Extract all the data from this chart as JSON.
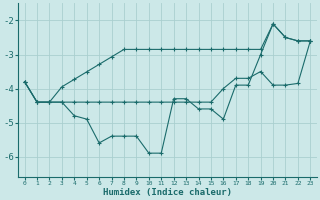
{
  "xlabel": "Humidex (Indice chaleur)",
  "background_color": "#cce8e8",
  "grid_color": "#aacfcf",
  "line_color": "#1a6b6b",
  "x": [
    0,
    1,
    2,
    3,
    4,
    5,
    6,
    7,
    8,
    9,
    10,
    11,
    12,
    13,
    14,
    15,
    16,
    17,
    18,
    19,
    20,
    21,
    22,
    23
  ],
  "y_main": [
    -3.8,
    -4.4,
    -4.4,
    -4.4,
    -4.8,
    -4.9,
    -5.6,
    -5.4,
    -5.4,
    -5.4,
    -5.9,
    -5.9,
    -4.3,
    -4.3,
    -4.6,
    -4.6,
    -4.9,
    -3.9,
    -3.9,
    -3.0,
    -2.1,
    -2.5,
    -2.6,
    -2.6
  ],
  "y_upper": [
    -3.8,
    -4.4,
    -4.4,
    -3.95,
    -3.73,
    -3.51,
    -3.29,
    -3.07,
    -2.85,
    -2.85,
    -2.85,
    -2.85,
    -2.85,
    -2.85,
    -2.85,
    -2.85,
    -2.85,
    -2.85,
    -2.85,
    -2.85,
    -2.1,
    -2.5,
    -2.6,
    -2.6
  ],
  "y_lower": [
    -3.8,
    -4.4,
    -4.4,
    -4.4,
    -4.4,
    -4.4,
    -4.4,
    -4.4,
    -4.4,
    -4.4,
    -4.4,
    -4.4,
    -4.4,
    -4.4,
    -4.4,
    -4.4,
    -4.0,
    -3.7,
    -3.7,
    -3.5,
    -3.9,
    -3.9,
    -3.85,
    -2.6
  ],
  "ylim": [
    -6.6,
    -1.5
  ],
  "xlim": [
    -0.5,
    23.5
  ],
  "yticks": [
    -6,
    -5,
    -4,
    -3,
    -2
  ],
  "xticks": [
    0,
    1,
    2,
    3,
    4,
    5,
    6,
    7,
    8,
    9,
    10,
    11,
    12,
    13,
    14,
    15,
    16,
    17,
    18,
    19,
    20,
    21,
    22,
    23
  ],
  "figsize": [
    3.2,
    2.0
  ],
  "dpi": 100
}
